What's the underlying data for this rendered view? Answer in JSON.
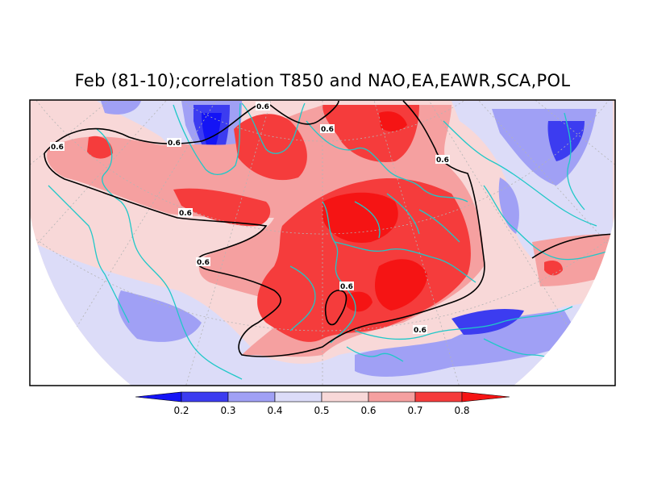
{
  "title": "Feb (81-10);correlation T850 and NAO,EA,EAWR,SCA,POL",
  "contour_label": "0.6",
  "colorbar": {
    "ticks": [
      "0.2",
      "0.3",
      "0.4",
      "0.5",
      "0.6",
      "0.7",
      "0.8"
    ],
    "colors": [
      "#1414f5",
      "#3c3cf0",
      "#a0a0f5",
      "#dcdcf8",
      "#f8d8d8",
      "#f5a0a0",
      "#f53c3c",
      "#f51414"
    ]
  },
  "palette": {
    "coast": "#20c8c8",
    "grid": "#b4b4b4",
    "contour": "#000000"
  }
}
